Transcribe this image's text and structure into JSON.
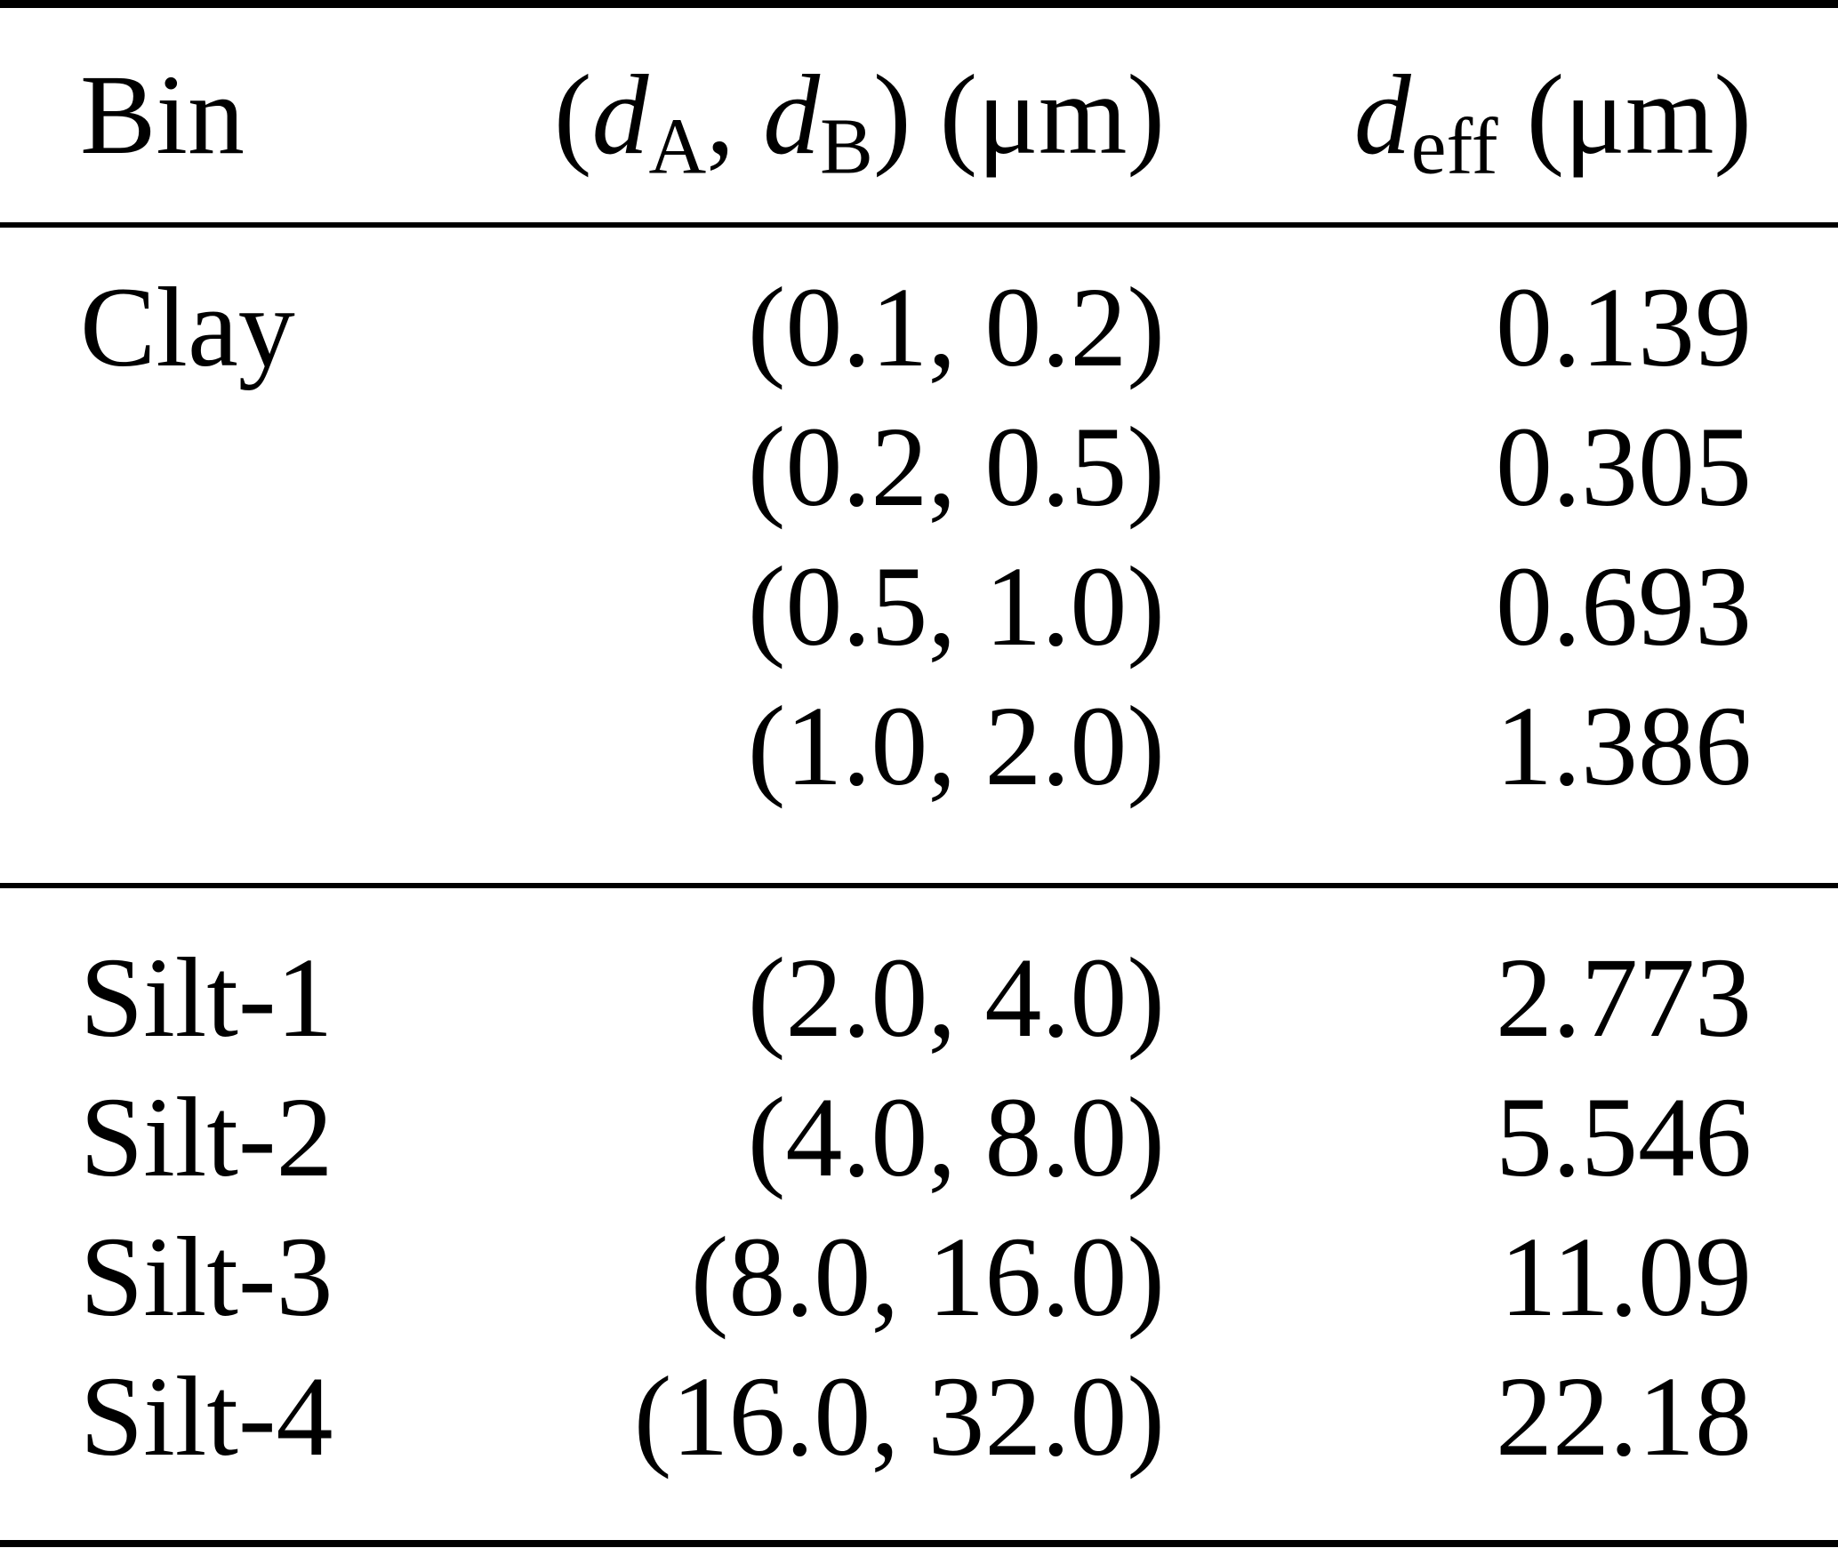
{
  "page": {
    "background_color": "#ffffff",
    "text_color": "#000000",
    "rule_color": "#000000"
  },
  "table": {
    "header": {
      "bin": "Bin",
      "col2": {
        "open_paren": "(",
        "d_a_symbol": "d",
        "d_a_subscript": "A",
        "separator": ", ",
        "d_b_symbol": "d",
        "d_b_subscript": "B",
        "close_paren": ")",
        "unit": " (μm)"
      },
      "col3": {
        "d_symbol": "d",
        "d_subscript": "eff",
        "unit": " (μm)"
      }
    },
    "rows": [
      {
        "bin": "Clay",
        "range": "(0.1, 0.2)",
        "deff": "0.139"
      },
      {
        "bin": "",
        "range": "(0.2, 0.5)",
        "deff": "0.305"
      },
      {
        "bin": "",
        "range": "(0.5, 1.0)",
        "deff": "0.693"
      },
      {
        "bin": "",
        "range": "(1.0, 2.0)",
        "deff": "1.386"
      },
      {
        "bin": "Silt-1",
        "range": "(2.0, 4.0)",
        "deff": "2.773"
      },
      {
        "bin": "Silt-2",
        "range": "(4.0, 8.0)",
        "deff": "5.546"
      },
      {
        "bin": "Silt-3",
        "range": "(8.0, 16.0)",
        "deff": "11.09"
      },
      {
        "bin": "Silt-4",
        "range": "(16.0, 32.0)",
        "deff": "22.18"
      }
    ]
  },
  "chart_data": {
    "type": "table",
    "title": "",
    "columns": [
      "Bin",
      "(dA, dB) (μm)",
      "deff (μm)"
    ],
    "rows": [
      [
        "Clay",
        "(0.1, 0.2)",
        0.139
      ],
      [
        "",
        "(0.2, 0.5)",
        0.305
      ],
      [
        "",
        "(0.5, 1.0)",
        0.693
      ],
      [
        "",
        "(1.0, 2.0)",
        1.386
      ],
      [
        "Silt-1",
        "(2.0, 4.0)",
        2.773
      ],
      [
        "Silt-2",
        "(4.0, 8.0)",
        5.546
      ],
      [
        "Silt-3",
        "(8.0, 16.0)",
        11.09
      ],
      [
        "Silt-4",
        "(16.0, 32.0)",
        22.18
      ]
    ]
  }
}
